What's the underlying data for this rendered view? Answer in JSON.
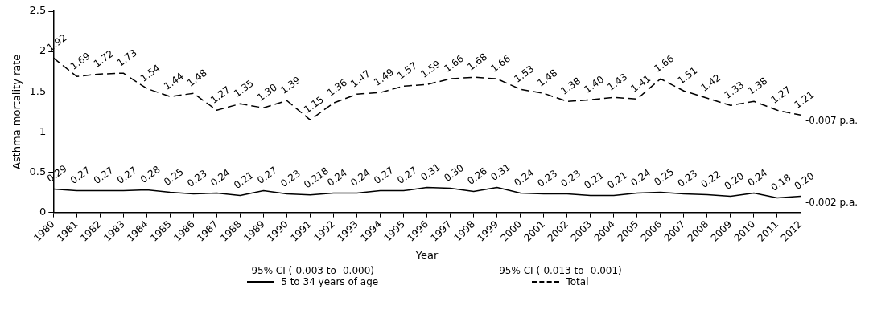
{
  "chart_data": {
    "type": "line",
    "xlabel": "Year",
    "ylabel": "Asthma mortality rate",
    "categories": [
      "1980",
      "1981",
      "1982",
      "1983",
      "1984",
      "1985",
      "1986",
      "1987",
      "1988",
      "1989",
      "1990",
      "1991",
      "1992",
      "1993",
      "1994",
      "1995",
      "1996",
      "1997",
      "1998",
      "1999",
      "2000",
      "2001",
      "2002",
      "2003",
      "2004",
      "2005",
      "2006",
      "2007",
      "2008",
      "2009",
      "2010",
      "2011",
      "2012"
    ],
    "series": [
      {
        "name": "5 to 34 years of age",
        "color": "#000000",
        "line_style": "solid",
        "values": [
          0.29,
          0.27,
          0.27,
          0.27,
          0.28,
          0.25,
          0.23,
          0.24,
          0.21,
          0.27,
          0.23,
          0.218,
          0.24,
          0.24,
          0.27,
          0.27,
          0.31,
          0.3,
          0.26,
          0.31,
          0.24,
          0.23,
          0.23,
          0.21,
          0.21,
          0.24,
          0.25,
          0.23,
          0.22,
          0.2,
          0.24,
          0.18,
          0.2
        ],
        "value_labels": [
          "0.29",
          "0.27",
          "0.27",
          "0.27",
          "0.28",
          "0.25",
          "0.23",
          "0.24",
          "0.21",
          "0.27",
          "0.23",
          "0.218",
          "0.24",
          "0.24",
          "0.27",
          "0.27",
          "0.31",
          "0.30",
          "0.26",
          "0.31",
          "0.24",
          "0.23",
          "0.23",
          "0.21",
          "0.21",
          "0.24",
          "0.25",
          "0.23",
          "0.22",
          "0.20",
          "0.24",
          "0.18",
          "0.20"
        ]
      },
      {
        "name": "Total",
        "color": "#000000",
        "line_style": "dashed",
        "values": [
          1.92,
          1.69,
          1.72,
          1.73,
          1.54,
          1.44,
          1.48,
          1.27,
          1.35,
          1.3,
          1.39,
          1.15,
          1.36,
          1.47,
          1.49,
          1.57,
          1.59,
          1.66,
          1.68,
          1.66,
          1.53,
          1.48,
          1.38,
          1.4,
          1.43,
          1.41,
          1.66,
          1.51,
          1.42,
          1.33,
          1.38,
          1.27,
          1.21
        ],
        "value_labels": [
          "1.92",
          "1.69",
          "1.72",
          "1.73",
          "1.54",
          "1.44",
          "1.48",
          "1.27",
          "1.35",
          "1.30",
          "1.39",
          "1.15",
          "1.36",
          "1.47",
          "1.49",
          "1.57",
          "1.59",
          "1.66",
          "1.68",
          "1.66",
          "1.53",
          "1.48",
          "1.38",
          "1.40",
          "1.43",
          "1.41",
          "1.66",
          "1.51",
          "1.42",
          "1.33",
          "1.38",
          "1.27",
          "1.21"
        ]
      }
    ],
    "ylim": [
      0,
      2.5
    ],
    "yticks": [
      0,
      0.5,
      1,
      1.5,
      2,
      2.5
    ],
    "grid": false,
    "legend": "bottom",
    "marker": "none",
    "annotations": [
      {
        "text": "-0.002 p.a.",
        "x": "2012",
        "y": 0.2
      },
      {
        "text": "-0.007 p.a.",
        "x": "2012",
        "y": 1.21
      },
      "95% CI (-0.003 to -0.000)",
      "95% CI (-0.013 to -0.001)"
    ]
  }
}
